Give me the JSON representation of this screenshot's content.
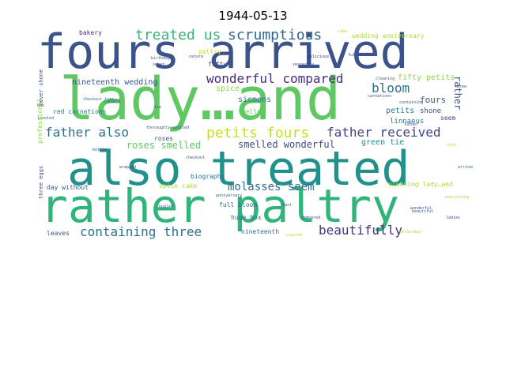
{
  "title": "1944-05-13",
  "palette": {
    "dark_blue": "#3b528b",
    "indigo": "#472d7b",
    "deep_purple": "#46337e",
    "teal": "#21918c",
    "blue_green": "#2c728e",
    "green": "#35b779",
    "light_green": "#6ece58",
    "yellow_green": "#addc30",
    "background": "#ffffff"
  },
  "words": [
    {
      "text": "fours arrived",
      "color": "#3b528b"
    },
    {
      "text": "lady…and",
      "color": "#5ec962"
    },
    {
      "text": "also treated",
      "color": "#21918c"
    },
    {
      "text": "rather paltry",
      "color": "#2fb47c"
    },
    {
      "text": "treated us",
      "color": "#35b779"
    },
    {
      "text": "scrumptious",
      "color": "#31688e"
    },
    {
      "text": "wonderful compared",
      "color": "#472d7b"
    },
    {
      "text": "bloom",
      "color": "#2c728e"
    },
    {
      "text": "father also",
      "color": "#2c728e"
    },
    {
      "text": "petits fours",
      "color": "#c8e020"
    },
    {
      "text": "father received",
      "color": "#414487"
    },
    {
      "text": "roses smelled",
      "color": "#5ec962"
    },
    {
      "text": "smelled wonderful",
      "color": "#3e4989"
    },
    {
      "text": "molasses seem",
      "color": "#31688e"
    },
    {
      "text": "containing three",
      "color": "#2c728e"
    },
    {
      "text": "beautifully",
      "color": "#46337e"
    },
    {
      "text": "nineteenth wedding",
      "color": "#3b528b"
    },
    {
      "text": "fifty petits",
      "color": "#8fd744"
    },
    {
      "text": "siemons",
      "color": "#2a788e"
    },
    {
      "text": "spice",
      "color": "#8fd744"
    },
    {
      "text": "fours",
      "color": "#3b528b"
    },
    {
      "text": "petits",
      "color": "#2a788e"
    },
    {
      "text": "shone",
      "color": "#3b528b"
    },
    {
      "text": "linnaeus",
      "color": "#2c728e"
    },
    {
      "text": "green tie",
      "color": "#21918c"
    },
    {
      "text": "smelled",
      "color": "#6ece58"
    },
    {
      "text": "bakery",
      "color": "#472d7b"
    },
    {
      "text": "paltry",
      "color": "#c8e020"
    },
    {
      "text": "fifty",
      "color": "#3b528b"
    },
    {
      "text": "wedding anniversary",
      "color": "#addc30"
    },
    {
      "text": "rather",
      "color": "#3b528b"
    },
    {
      "text": "seem",
      "color": "#3b528b"
    },
    {
      "text": "red carnations",
      "color": "#2c728e"
    },
    {
      "text": "never shone",
      "color": "#3b528b"
    },
    {
      "text": "professional",
      "color": "#8fd744"
    },
    {
      "text": "roses",
      "color": "#3b528b"
    },
    {
      "text": "biography",
      "color": "#2c728e"
    },
    {
      "text": "spice cake",
      "color": "#addc30"
    },
    {
      "text": "day without",
      "color": "#3b528b"
    },
    {
      "text": "three eggs",
      "color": "#3b528b"
    },
    {
      "text": "full bloom",
      "color": "#2c728e"
    },
    {
      "text": "huge box",
      "color": "#2c728e"
    },
    {
      "text": "nineteenth",
      "color": "#2c728e"
    },
    {
      "text": "leaves",
      "color": "#3b528b"
    },
    {
      "text": "cleaning lady…and",
      "color": "#addc30"
    },
    {
      "text": "canals",
      "color": "#3b528b"
    },
    {
      "text": "checkout tree",
      "color": "#2c728e"
    },
    {
      "text": "birthday",
      "color": "#3b528b"
    },
    {
      "text": "sweet",
      "color": "#3b528b"
    },
    {
      "text": "delicious",
      "color": "#472d7b"
    },
    {
      "text": "cleaning",
      "color": "#2c728e"
    },
    {
      "text": "carnations",
      "color": "#3b528b"
    },
    {
      "text": "father",
      "color": "#3b528b"
    },
    {
      "text": "containing",
      "color": "#3b528b"
    },
    {
      "text": "cake",
      "color": "#addc30"
    },
    {
      "text": "yesterday",
      "color": "#3b528b"
    },
    {
      "text": "full",
      "color": "#3b528b"
    },
    {
      "text": "three",
      "color": "#3b528b"
    },
    {
      "text": "treated",
      "color": "#2c728e"
    },
    {
      "text": "bottle",
      "color": "#3b528b"
    },
    {
      "text": "bugler",
      "color": "#3b528b"
    },
    {
      "text": "anniversary",
      "color": "#3b528b"
    },
    {
      "text": "compared",
      "color": "#3b528b"
    },
    {
      "text": "wonderful",
      "color": "#3b528b"
    },
    {
      "text": "ladies",
      "color": "#3b528b"
    },
    {
      "text": "arrived",
      "color": "#2c728e"
    },
    {
      "text": "everything",
      "color": "#addc30"
    },
    {
      "text": "tie",
      "color": "#3b528b"
    },
    {
      "text": "box",
      "color": "#3b528b"
    },
    {
      "text": "last",
      "color": "#3b528b"
    },
    {
      "text": "checkout",
      "color": "#3b528b"
    },
    {
      "text": "wrapped",
      "color": "#3b528b"
    },
    {
      "text": "thoroughly spoiled",
      "color": "#3b528b"
    },
    {
      "text": "beautiful",
      "color": "#3b528b"
    },
    {
      "text": "nature",
      "color": "#3b528b"
    },
    {
      "text": "sure",
      "color": "#addc30"
    },
    {
      "text": "covered",
      "color": "#addc30"
    },
    {
      "text": "yesterday",
      "color": "#addc30"
    }
  ]
}
